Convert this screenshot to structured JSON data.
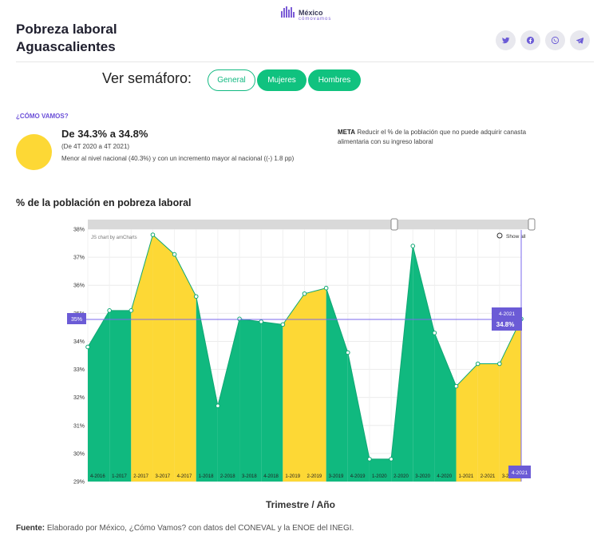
{
  "logo": {
    "name": "México",
    "sub": "cómovamos"
  },
  "header": {
    "title_line1": "Pobreza laboral",
    "title_line2": "Aguascalientes"
  },
  "social": [
    "twitter-icon",
    "facebook-icon",
    "whatsapp-icon",
    "telegram-icon"
  ],
  "semaforo": {
    "label": "Ver semáforo:",
    "buttons": {
      "general": "General",
      "mujeres": "Mujeres",
      "hombres": "Hombres"
    }
  },
  "summary": {
    "heading": "¿CÓMO VAMOS?",
    "range": "De 34.3% a 34.8%",
    "period": "(De 4T 2020 a 4T 2021)",
    "compare": "Menor al nivel nacional (40.3%) y con un incremento mayor al nacional ((-) 1.8 pp)",
    "meta_label": "META",
    "meta_text": "Reducir el % de la población que no puede adquirir canasta alimentaria con su ingreso laboral",
    "status_color": "#fdd835"
  },
  "chart": {
    "heading": "% de la población en pobreza laboral",
    "credit": "JS chart by amCharts",
    "show_all": "Show all",
    "cursor_value_label": "35%",
    "tooltip_period": "4-2021",
    "tooltip_value": "34.8%",
    "cursor_x_label": "4-2021"
  },
  "chart_data": {
    "type": "area",
    "title": "% de la población en pobreza laboral",
    "xlabel": "Trimestre / Año",
    "ylabel": "",
    "ylim": [
      29,
      38
    ],
    "y_ticks": [
      "29%",
      "30%",
      "31%",
      "32%",
      "33%",
      "34%",
      "35%",
      "36%",
      "37%",
      "38%"
    ],
    "categories": [
      "4-2016",
      "1-2017",
      "2-2017",
      "3-2017",
      "4-2017",
      "1-2018",
      "2-2018",
      "3-2018",
      "4-2018",
      "1-2019",
      "2-2019",
      "3-2019",
      "4-2019",
      "1-2020",
      "2-2020",
      "3-2020",
      "4-2020",
      "1-2021",
      "2-2021",
      "3-2021",
      "4-2021"
    ],
    "values": [
      33.8,
      35.1,
      35.1,
      37.8,
      37.1,
      35.6,
      31.7,
      34.8,
      34.7,
      34.6,
      35.7,
      35.9,
      33.6,
      29.8,
      29.8,
      37.4,
      34.3,
      32.4,
      33.2,
      33.2,
      34.8
    ],
    "segment_colors": [
      "#10b97f",
      "#10b97f",
      "#fdd835",
      "#fdd835",
      "#fdd835",
      "#10b97f",
      "#10b97f",
      "#10b97f",
      "#10b97f",
      "#fdd835",
      "#fdd835",
      "#10b97f",
      "#10b97f",
      "#10b97f",
      "#10b97f",
      "#10b97f",
      "#10b97f",
      "#fdd835",
      "#fdd835",
      "#fdd835"
    ],
    "grid": true
  },
  "footer": {
    "label": "Fuente:",
    "text": " Elaborado por México, ¿Cómo Vamos? con datos del CONEVAL y la ENOE del INEGI."
  }
}
